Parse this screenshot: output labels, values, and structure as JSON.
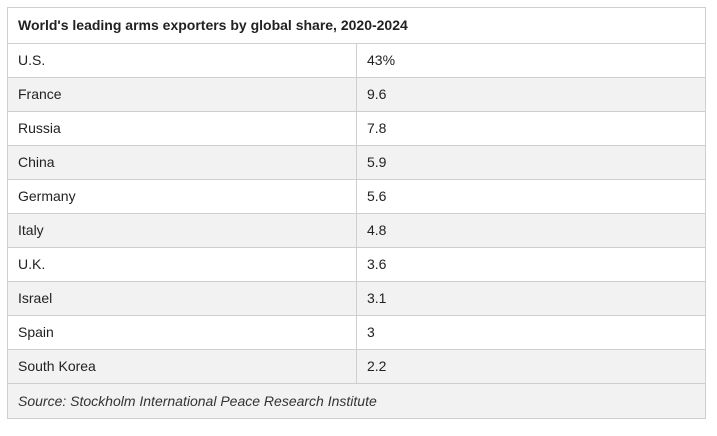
{
  "chart_data": {
    "type": "table",
    "title": "World's leading arms exporters by global share, 2020-2024",
    "rows": [
      {
        "country": "U.S.",
        "share": "43%"
      },
      {
        "country": "France",
        "share": "9.6"
      },
      {
        "country": "Russia",
        "share": "7.8"
      },
      {
        "country": "China",
        "share": "5.9"
      },
      {
        "country": "Germany",
        "share": "5.6"
      },
      {
        "country": "Italy",
        "share": "4.8"
      },
      {
        "country": "U.K.",
        "share": "3.6"
      },
      {
        "country": "Israel",
        "share": "3.1"
      },
      {
        "country": "Spain",
        "share": "3"
      },
      {
        "country": "South Korea",
        "share": "2.2"
      }
    ],
    "source": "Source: Stockholm International Peace Research Institute"
  }
}
